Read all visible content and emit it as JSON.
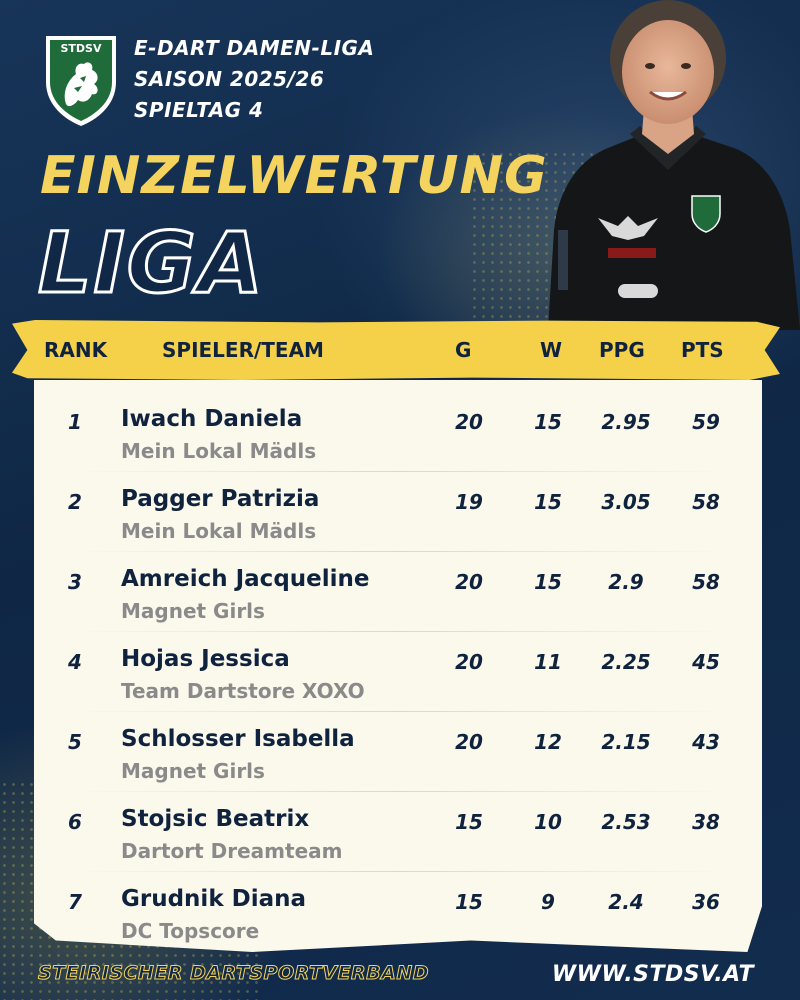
{
  "header": {
    "logo_text": "STDSV",
    "line1": "E-DART DAMEN-LIGA",
    "line2": "SAISON 2025/26",
    "line3": "SPIELTAG 4"
  },
  "title": {
    "main": "EINZELWERTUNG",
    "sub": "LIGA"
  },
  "table": {
    "columns": [
      "RANK",
      "SPIELER/TEAM",
      "G",
      "W",
      "PPG",
      "PTS"
    ],
    "rows": [
      {
        "rank": "1",
        "name": "Iwach Daniela",
        "team": "Mein Lokal Mädls",
        "g": "20",
        "w": "15",
        "ppg": "2.95",
        "pts": "59"
      },
      {
        "rank": "2",
        "name": "Pagger Patrizia",
        "team": "Mein Lokal Mädls",
        "g": "19",
        "w": "15",
        "ppg": "3.05",
        "pts": "58"
      },
      {
        "rank": "3",
        "name": "Amreich Jacqueline",
        "team": "Magnet Girls",
        "g": "20",
        "w": "15",
        "ppg": "2.9",
        "pts": "58"
      },
      {
        "rank": "4",
        "name": "Hojas Jessica",
        "team": "Team Dartstore XOXO",
        "g": "20",
        "w": "11",
        "ppg": "2.25",
        "pts": "45"
      },
      {
        "rank": "5",
        "name": "Schlosser Isabella",
        "team": "Magnet Girls",
        "g": "20",
        "w": "12",
        "ppg": "2.15",
        "pts": "43"
      },
      {
        "rank": "6",
        "name": "Stojsic Beatrix",
        "team": "Dartort Dreamteam",
        "g": "15",
        "w": "10",
        "ppg": "2.53",
        "pts": "38"
      },
      {
        "rank": "7",
        "name": "Grudnik Diana",
        "team": "DC Topscore",
        "g": "15",
        "w": "9",
        "ppg": "2.4",
        "pts": "36"
      }
    ]
  },
  "footer": {
    "left": "STEIRISCHER DARTSPORTVERBAND",
    "right": "WWW.STDSV.AT"
  },
  "colors": {
    "background": "#102846",
    "accent": "#f4d35e",
    "panel": "#fbf8ec",
    "text_dark": "#10233e",
    "team_gray": "#8a8a8a"
  }
}
